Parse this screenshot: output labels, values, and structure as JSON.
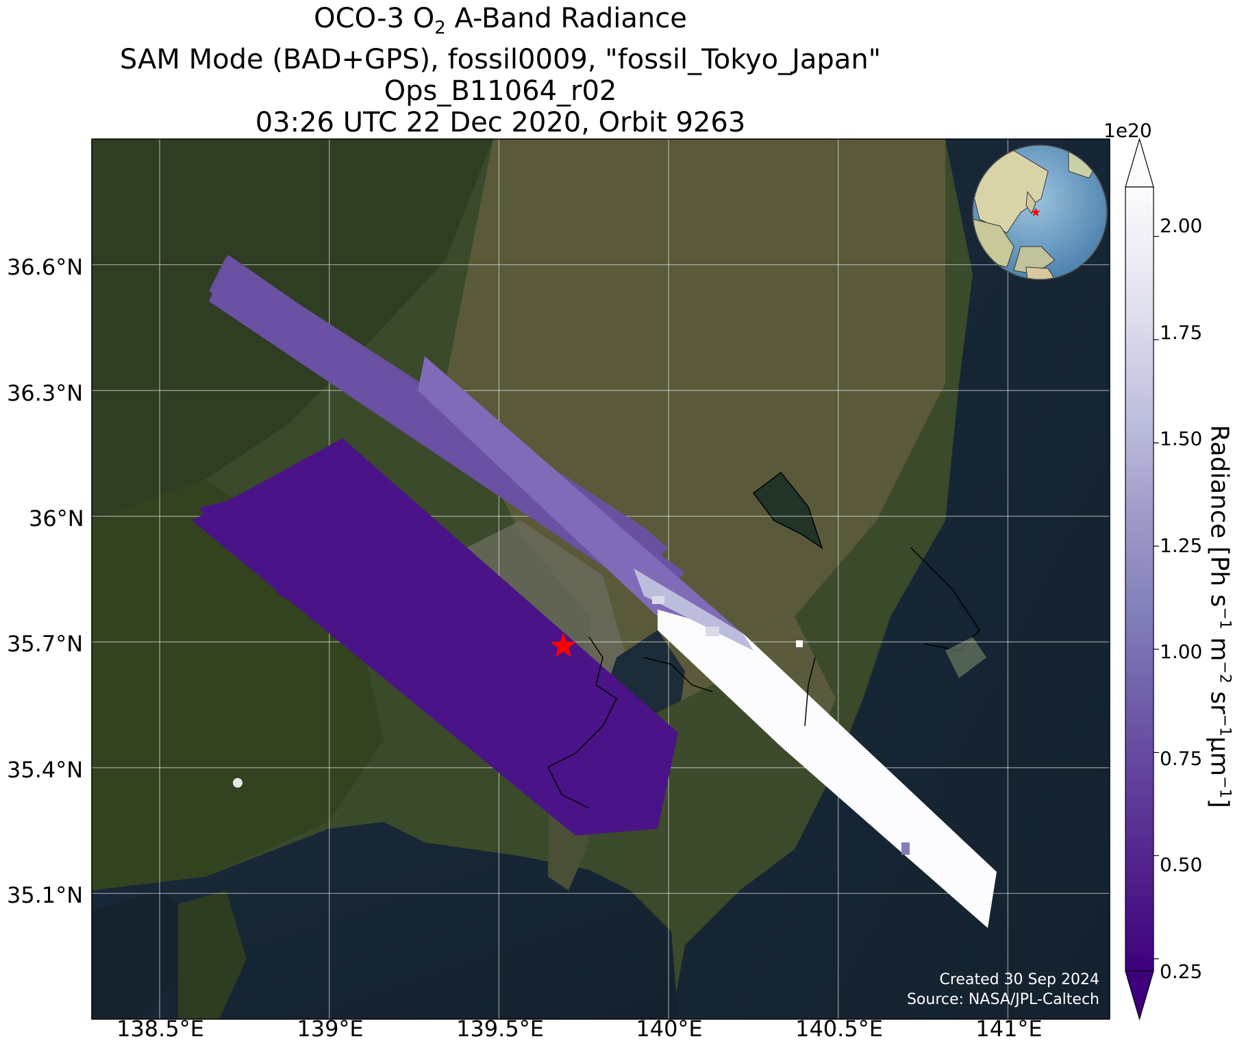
{
  "title": {
    "line1_prefix": "OCO-3 O",
    "line1_sub": "2",
    "line1_suffix": " A-Band Radiance",
    "line2": "SAM Mode (BAD+GPS), fossil0009, \"fossil_Tokyo_Japan\"",
    "line3": "Ops_B11064_r02",
    "line4": "03:26 UTC 22 Dec 2020, Orbit 9263"
  },
  "map": {
    "lat_labels": [
      "36.6°N",
      "36.3°N",
      "36°N",
      "35.7°N",
      "35.4°N",
      "35.1°N"
    ],
    "lat_values": [
      36.6,
      36.3,
      36.0,
      35.7,
      35.4,
      35.1
    ],
    "lon_labels": [
      "138.5°E",
      "139°E",
      "139.5°E",
      "140°E",
      "140.5°E",
      "141°E"
    ],
    "lon_values": [
      138.5,
      139.0,
      139.5,
      140.0,
      140.5,
      141.0
    ],
    "lon_range": [
      138.3,
      141.3
    ],
    "lat_range": [
      34.8,
      36.9
    ],
    "target_marker": {
      "lon": 139.69,
      "lat": 35.69,
      "color": "#ff0000"
    },
    "credit_line1": "Created 30 Sep 2024",
    "credit_line2": "Source: NASA/JPL-Caltech",
    "inset_globe": {
      "center_lon": 140,
      "center_lat": 20,
      "marker_color": "#ff0000"
    }
  },
  "colorbar": {
    "label_prefix": "Radiance [Ph s",
    "exponent_label": "1e20",
    "ticks": [
      "2.00",
      "1.75",
      "1.50",
      "1.25",
      "1.00",
      "0.75",
      "0.50",
      "0.25"
    ],
    "tick_values": [
      2.0,
      1.75,
      1.5,
      1.25,
      1.0,
      0.75,
      0.5,
      0.25
    ],
    "range": [
      0.22,
      2.12
    ],
    "extend": "both",
    "colormap": "Purples_r",
    "colors": [
      "#3f007d",
      "#54278f",
      "#6a51a3",
      "#807dba",
      "#9e9ac8",
      "#bcbddc",
      "#dadaeb",
      "#efedf5",
      "#fcfbfd"
    ]
  }
}
